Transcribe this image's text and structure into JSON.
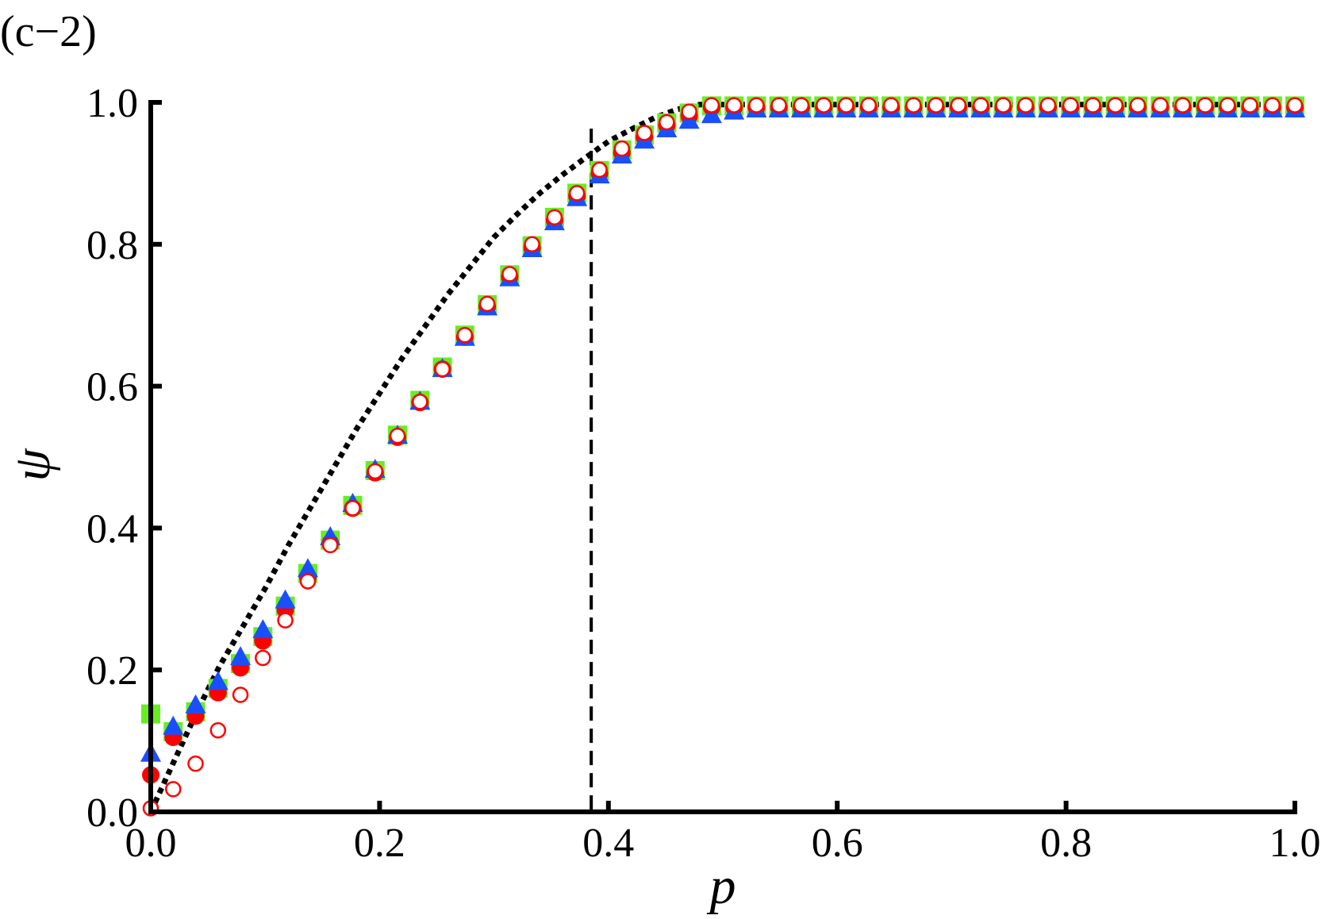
{
  "panel_label": "(c−2)",
  "chart_data": {
    "type": "scatter",
    "title": "",
    "xlabel": "p",
    "ylabel": "ψ",
    "xlim": [
      0,
      1
    ],
    "ylim": [
      0,
      1
    ],
    "xticks": [
      0.0,
      0.2,
      0.4,
      0.6,
      0.8,
      1.0
    ],
    "yticks": [
      0.0,
      0.2,
      0.4,
      0.6,
      0.8,
      1.0
    ],
    "xtick_labels": [
      "0.0",
      "0.2",
      "0.4",
      "0.6",
      "0.8",
      "1.0"
    ],
    "ytick_labels": [
      "0.0",
      "0.2",
      "0.4",
      "0.6",
      "0.8",
      "1.0"
    ],
    "grid": false,
    "legend": "none",
    "colors": {
      "red": "#ff0000",
      "green": "#66ee22",
      "blue": "#1a4fff",
      "black": "#000000"
    },
    "x": [
      0.0,
      0.0196,
      0.0392,
      0.0588,
      0.0784,
      0.098,
      0.1176,
      0.1373,
      0.1569,
      0.1765,
      0.1961,
      0.2157,
      0.2353,
      0.2549,
      0.2745,
      0.2941,
      0.3137,
      0.3333,
      0.3529,
      0.3725,
      0.3922,
      0.4118,
      0.4314,
      0.451,
      0.4706,
      0.4902,
      0.5098,
      0.5294,
      0.549,
      0.5686,
      0.5882,
      0.6078,
      0.6275,
      0.6471,
      0.6667,
      0.6863,
      0.7059,
      0.7255,
      0.7451,
      0.7647,
      0.7843,
      0.8039,
      0.8235,
      0.8431,
      0.8627,
      0.8824,
      0.902,
      0.9216,
      0.9412,
      0.9608,
      0.9804,
      1.0
    ],
    "series": [
      {
        "marker": "square",
        "color": "#66ee22",
        "values": [
          0.138,
          0.113,
          0.141,
          0.174,
          0.209,
          0.247,
          0.29,
          0.336,
          0.383,
          0.432,
          0.481,
          0.531,
          0.58,
          0.627,
          0.672,
          0.715,
          0.757,
          0.798,
          0.838,
          0.872,
          0.904,
          0.933,
          0.954,
          0.971,
          0.985,
          0.995,
          0.995,
          0.995,
          0.995,
          0.995,
          0.995,
          0.995,
          0.995,
          0.995,
          0.995,
          0.995,
          0.995,
          0.995,
          0.995,
          0.995,
          0.995,
          0.995,
          0.995,
          0.995,
          0.995,
          0.995,
          0.995,
          0.995,
          0.995,
          0.995,
          0.995,
          0.995
        ]
      },
      {
        "marker": "filled-circle",
        "color": "#ff0000",
        "values": [
          0.052,
          0.105,
          0.135,
          0.168,
          0.203,
          0.241,
          0.285,
          0.331,
          0.379,
          0.428,
          0.478,
          0.528,
          0.577,
          0.624,
          0.669,
          0.712,
          0.754,
          0.795,
          0.834,
          0.868,
          0.9,
          0.929,
          0.951,
          0.968,
          0.981,
          0.993,
          0.993,
          0.993,
          0.993,
          0.993,
          0.993,
          0.993,
          0.993,
          0.993,
          0.993,
          0.993,
          0.993,
          0.993,
          0.993,
          0.993,
          0.993,
          0.993,
          0.993,
          0.993,
          0.993,
          0.993,
          0.993,
          0.993,
          0.993,
          0.993,
          0.993,
          0.993
        ]
      },
      {
        "marker": "triangle",
        "color": "#1a4fff",
        "values": [
          0.082,
          0.12,
          0.15,
          0.183,
          0.218,
          0.256,
          0.298,
          0.342,
          0.387,
          0.434,
          0.482,
          0.53,
          0.578,
          0.624,
          0.668,
          0.711,
          0.752,
          0.793,
          0.831,
          0.865,
          0.897,
          0.925,
          0.946,
          0.962,
          0.974,
          0.982,
          0.987,
          0.99,
          0.99,
          0.99,
          0.99,
          0.99,
          0.99,
          0.99,
          0.99,
          0.99,
          0.99,
          0.99,
          0.99,
          0.99,
          0.99,
          0.99,
          0.99,
          0.99,
          0.99,
          0.99,
          0.99,
          0.99,
          0.99,
          0.99,
          0.99,
          0.99
        ]
      },
      {
        "marker": "open-circle",
        "color": "#ff0000",
        "values": [
          0.005,
          0.032,
          0.068,
          0.115,
          0.165,
          0.217,
          0.27,
          0.325,
          0.376,
          0.428,
          0.48,
          0.53,
          0.578,
          0.624,
          0.672,
          0.716,
          0.758,
          0.8,
          0.838,
          0.872,
          0.905,
          0.935,
          0.957,
          0.972,
          0.987,
          0.996,
          0.996,
          0.996,
          0.996,
          0.996,
          0.996,
          0.996,
          0.996,
          0.996,
          0.996,
          0.996,
          0.996,
          0.996,
          0.996,
          0.996,
          0.996,
          0.996,
          0.996,
          0.996,
          0.996,
          0.996,
          0.996,
          0.996,
          0.996,
          0.996,
          0.996,
          0.996
        ]
      }
    ],
    "curve": {
      "style": "dotted",
      "color": "#000000",
      "x": [
        0.0,
        0.02,
        0.04,
        0.06,
        0.08,
        0.1,
        0.12,
        0.14,
        0.16,
        0.18,
        0.2,
        0.22,
        0.24,
        0.26,
        0.28,
        0.3,
        0.32,
        0.34,
        0.36,
        0.38,
        0.4,
        0.42,
        0.44,
        0.46,
        0.48,
        0.5,
        0.6,
        0.7,
        0.8,
        0.9,
        1.0
      ],
      "y": [
        0.0,
        0.07,
        0.14,
        0.205,
        0.26,
        0.315,
        0.375,
        0.43,
        0.485,
        0.54,
        0.59,
        0.64,
        0.685,
        0.73,
        0.77,
        0.81,
        0.842,
        0.872,
        0.898,
        0.922,
        0.945,
        0.962,
        0.978,
        0.99,
        0.997,
        0.997,
        0.997,
        0.997,
        0.997,
        0.997,
        0.997
      ]
    },
    "vline": {
      "x": 0.385,
      "style": "dashed",
      "color": "#000000"
    }
  }
}
